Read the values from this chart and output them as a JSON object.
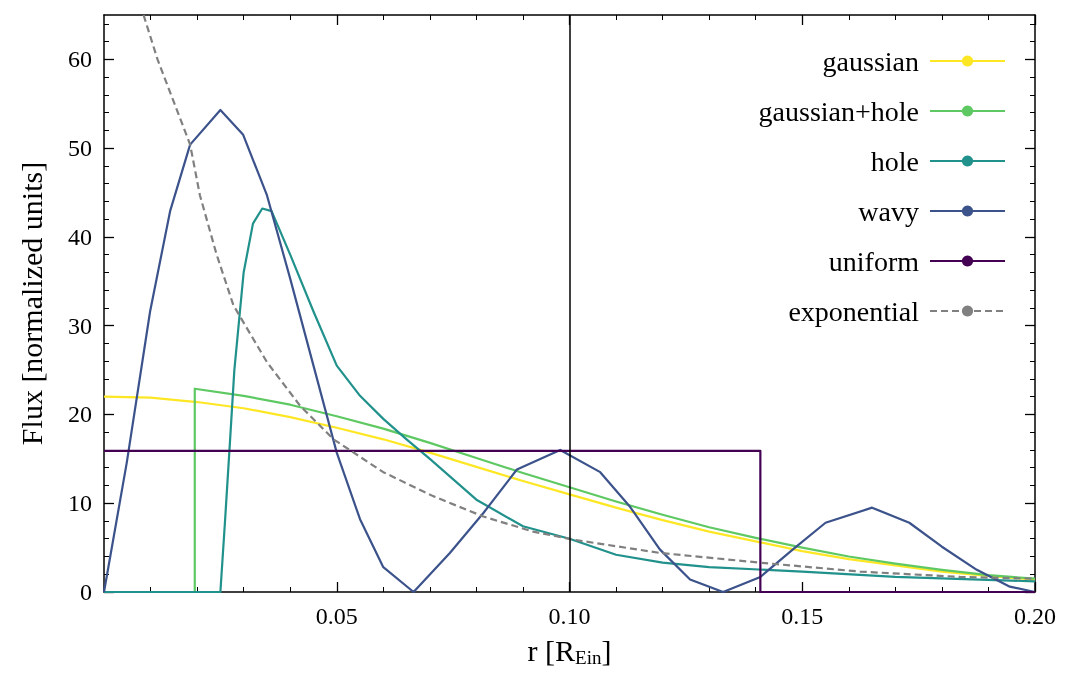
{
  "chart_data": {
    "type": "line",
    "xlabel": "r [R$_{Ein}$]",
    "ylabel": "Flux [normalized units]",
    "xlim": [
      0,
      0.2
    ],
    "xticks": [
      0.05,
      {
        "value": 0.1,
        "label": "0.10"
      },
      0.15,
      {
        "value": 0.2,
        "label": "0.20"
      }
    ],
    "ylim": [
      0,
      65
    ],
    "yticks": [
      0,
      10,
      20,
      30,
      40,
      50,
      60
    ],
    "grid": false,
    "legend": "top right",
    "marker": "none",
    "ref_lines": [
      {
        "axis": "x",
        "value": 0.1,
        "color": "#000000"
      }
    ],
    "series": [
      {
        "name": "gaussian",
        "color": "#fde725",
        "x": [
          0,
          0.01,
          0.02,
          0.03,
          0.04,
          0.05,
          0.06,
          0.07,
          0.08,
          0.09,
          0.1,
          0.11,
          0.12,
          0.13,
          0.14,
          0.15,
          0.16,
          0.17,
          0.18,
          0.19,
          0.2
        ],
        "values": [
          22.0,
          21.9,
          21.4,
          20.7,
          19.7,
          18.5,
          17.2,
          15.7,
          14.1,
          12.5,
          11.0,
          9.5,
          8.1,
          6.8,
          5.7,
          4.6,
          3.7,
          3.0,
          2.3,
          1.8,
          1.4
        ]
      },
      {
        "name": "gaussian+hole",
        "color": "#5ec962",
        "x": [
          0,
          0.0195,
          0.0195,
          0.03,
          0.04,
          0.05,
          0.06,
          0.07,
          0.08,
          0.09,
          0.1,
          0.11,
          0.12,
          0.13,
          0.14,
          0.15,
          0.16,
          0.17,
          0.18,
          0.19,
          0.2
        ],
        "values": [
          0,
          0,
          22.9,
          22.1,
          21.1,
          19.8,
          18.4,
          16.8,
          15.1,
          13.4,
          11.8,
          10.2,
          8.7,
          7.3,
          6.1,
          5.0,
          4.0,
          3.2,
          2.5,
          1.9,
          1.5
        ]
      },
      {
        "name": "hole",
        "color": "#21918c",
        "x": [
          0,
          0.025,
          0.026,
          0.027,
          0.028,
          0.03,
          0.032,
          0.034,
          0.036,
          0.04,
          0.045,
          0.05,
          0.055,
          0.06,
          0.065,
          0.07,
          0.08,
          0.09,
          0.1,
          0.11,
          0.12,
          0.13,
          0.15,
          0.17,
          0.2
        ],
        "values": [
          0,
          0,
          8,
          16.4,
          25,
          36,
          41.5,
          43.2,
          42.9,
          38,
          31.6,
          25.5,
          22.1,
          19.5,
          17.2,
          15.0,
          10.4,
          7.4,
          6.0,
          4.2,
          3.3,
          2.8,
          2.3,
          1.7,
          1.2
        ]
      },
      {
        "name": "wavy",
        "color": "#3b528b",
        "x": [
          0,
          0.0049,
          0.0099,
          0.0142,
          0.0185,
          0.025,
          0.0299,
          0.035,
          0.04,
          0.045,
          0.05,
          0.055,
          0.06,
          0.0665,
          0.0743,
          0.0815,
          0.0887,
          0.098,
          0.1066,
          0.113,
          0.1194,
          0.1259,
          0.133,
          0.141,
          0.148,
          0.155,
          0.165,
          0.173,
          0.18,
          0.1875,
          0.1946,
          0.2
        ],
        "values": [
          0,
          14.6,
          31.6,
          42.9,
          50.4,
          54.3,
          51.5,
          44.7,
          35.3,
          25.5,
          15.7,
          8.2,
          2.8,
          0,
          4.4,
          8.9,
          13.8,
          16.0,
          13.5,
          9.6,
          4.8,
          1.4,
          0,
          1.7,
          4.8,
          7.8,
          9.5,
          7.8,
          5.1,
          2.5,
          0.6,
          0
        ]
      },
      {
        "name": "uniform",
        "color": "#440154",
        "x": [
          0,
          0.141,
          0.141,
          0.2
        ],
        "values": [
          15.9,
          15.9,
          0,
          0
        ]
      },
      {
        "name": "exponential",
        "color": "#808080",
        "line_style": "dashed",
        "x": [
          0.0085,
          0.0115,
          0.0185,
          0.0206,
          0.0242,
          0.0278,
          0.035,
          0.0421,
          0.0493,
          0.06,
          0.0707,
          0.0815,
          0.0922,
          0.1008,
          0.1194,
          0.141,
          0.1624,
          0.1839,
          0.2
        ],
        "values": [
          65,
          60,
          50.4,
          44.7,
          38,
          32.3,
          25.9,
          21,
          17.2,
          13.5,
          10.8,
          8.5,
          6.8,
          5.9,
          4.4,
          3.3,
          2.3,
          1.7,
          1.5
        ]
      }
    ]
  }
}
